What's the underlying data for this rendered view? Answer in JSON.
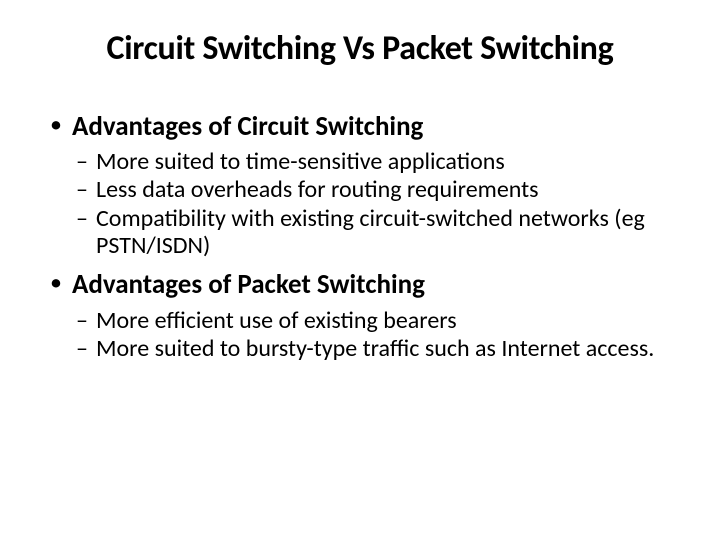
{
  "slide": {
    "title": "Circuit Switching Vs Packet Switching",
    "bullets": [
      {
        "label": "Advantages of Circuit Switching",
        "sub": [
          "More suited to time-sensitive applications",
          "Less data overheads for routing requirements",
          "Compatibility with existing circuit-switched networks (eg PSTN/ISDN)"
        ]
      },
      {
        "label": "Advantages of Packet Switching",
        "sub": [
          "More efficient use of existing bearers",
          "More suited to bursty-type traffic such as Internet access."
        ]
      }
    ]
  },
  "style": {
    "background_color": "#ffffff",
    "text_color": "#000000",
    "title_fontsize": 34,
    "title_weight": 700,
    "level1_fontsize": 27,
    "level1_weight": 700,
    "level2_fontsize": 24,
    "level2_weight": 400,
    "font_family": "Calibri"
  }
}
